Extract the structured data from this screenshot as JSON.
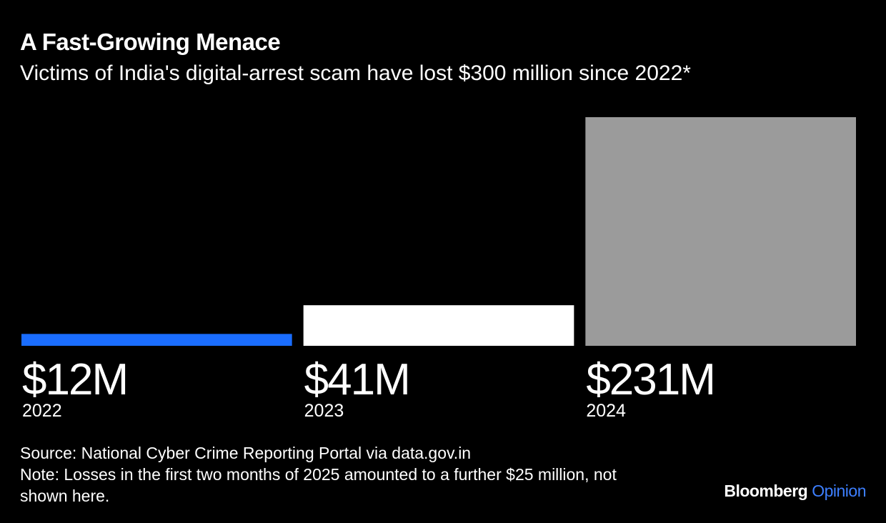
{
  "header": {
    "title": "A Fast-Growing Menace",
    "subtitle": "Victims of India's digital-arrest scam have lost $300 million since 2022*"
  },
  "chart_data": {
    "type": "bar",
    "title": "A Fast-Growing Menace",
    "subtitle": "Victims of India's digital-arrest scam have lost $300 million since 2022*",
    "categories": [
      "2022",
      "2023",
      "2024"
    ],
    "values": [
      12,
      41,
      231
    ],
    "value_labels": [
      "$12M",
      "$41M",
      "$231M"
    ],
    "unit": "$ million",
    "bar_colors": [
      "#1a6dff",
      "#ffffff",
      "#9b9b9b"
    ],
    "ylim": [
      0,
      231
    ],
    "grid": false,
    "xlabel": "",
    "ylabel": ""
  },
  "footer": {
    "source": "Source: National Cyber Crime Reporting Portal via data.gov.in",
    "note": "Note: Losses in the first two months of 2025 amounted to a further $25 million, not shown here."
  },
  "brand": {
    "name": "Bloomberg",
    "section": "Opinion",
    "section_color": "#3d7fff"
  }
}
